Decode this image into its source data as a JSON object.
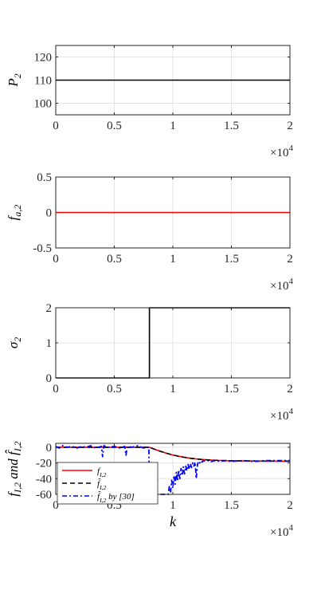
{
  "chart_data": [
    {
      "type": "line",
      "ylabel": "P_2",
      "xlim": [
        0,
        20000
      ],
      "ylim": [
        95,
        125
      ],
      "xticks": [
        "0",
        "0.5",
        "1",
        "1.5",
        "2"
      ],
      "yticks": [
        "100",
        "110",
        "120"
      ],
      "ytick_values": [
        100,
        110,
        120
      ],
      "x_multiplier": "×10^4",
      "grid": true,
      "series": [
        {
          "color": "#000000",
          "style": "solid",
          "x": [
            0,
            20000
          ],
          "y": [
            110,
            110
          ]
        }
      ]
    },
    {
      "type": "line",
      "ylabel": "f_{a,2}",
      "xlim": [
        0,
        20000
      ],
      "ylim": [
        -0.5,
        0.5
      ],
      "xticks": [
        "0",
        "0.5",
        "1",
        "1.5",
        "2"
      ],
      "yticks": [
        "-0.5",
        "0",
        "0.5"
      ],
      "ytick_values": [
        -0.5,
        0,
        0.5
      ],
      "x_multiplier": "×10^4",
      "grid": true,
      "series": [
        {
          "color": "#ff0000",
          "style": "solid",
          "x": [
            0,
            20000
          ],
          "y": [
            0,
            0
          ]
        }
      ]
    },
    {
      "type": "line",
      "ylabel": "σ_2",
      "xlim": [
        0,
        20000
      ],
      "ylim": [
        0,
        2
      ],
      "xticks": [
        "0",
        "0.5",
        "1",
        "1.5",
        "2"
      ],
      "yticks": [
        "0",
        "1",
        "2"
      ],
      "ytick_values": [
        0,
        1,
        2
      ],
      "x_multiplier": "×10^4",
      "grid": true,
      "series": [
        {
          "color": "#000000",
          "style": "solid",
          "x": [
            0,
            8000,
            8000,
            20000
          ],
          "y": [
            0,
            0,
            2,
            2
          ]
        }
      ]
    },
    {
      "type": "line",
      "ylabel": "f_{I,2} and f̂_{I,2}",
      "xlabel": "k",
      "xlim": [
        0,
        20000
      ],
      "ylim": [
        -60,
        5
      ],
      "xticks": [
        "0",
        "0.5",
        "1",
        "1.5",
        "2"
      ],
      "yticks": [
        "0",
        "-20",
        "-40",
        "-60"
      ],
      "ytick_values": [
        0,
        -20,
        -40,
        -60
      ],
      "x_multiplier": "×10^4",
      "grid": true,
      "legend": "bottom-left",
      "series": [
        {
          "name": "f_{I,2}",
          "color": "#ff0000",
          "style": "solid",
          "x": [
            0,
            8000,
            8500,
            9000,
            9500,
            10000,
            10500,
            11000,
            11500,
            12000,
            12500,
            13000,
            14000,
            15000,
            16000,
            18000,
            20000
          ],
          "y": [
            0,
            0,
            -2.8,
            -5.5,
            -7.8,
            -9.8,
            -11.5,
            -12.9,
            -14,
            -14.9,
            -15.6,
            -16.1,
            -16.8,
            -17.2,
            -17.4,
            -17.6,
            -17.7
          ]
        },
        {
          "name": "f̂_{I,2}",
          "color": "#000000",
          "style": "dashed",
          "x": [
            0,
            8000,
            8500,
            9000,
            9500,
            10000,
            10500,
            11000,
            11500,
            12000,
            12500,
            13000,
            14000,
            15000,
            16000,
            18000,
            20000
          ],
          "y": [
            0,
            0,
            -2.8,
            -5.5,
            -7.8,
            -9.8,
            -11.5,
            -12.9,
            -14,
            -14.9,
            -15.6,
            -16.1,
            -16.8,
            -17.2,
            -17.4,
            -17.6,
            -17.7
          ]
        },
        {
          "name": "f̂_{I,2} by [30]",
          "color": "#0000ff",
          "style": "dashdot",
          "x": [
            0,
            300,
            600,
            1000,
            1400,
            1800,
            2200,
            2600,
            3000,
            3400,
            3900,
            4000,
            4100,
            4500,
            5000,
            5500,
            5900,
            6000,
            6100,
            6500,
            7000,
            7500,
            7950,
            8000,
            8100,
            9400,
            9600,
            9700,
            9800,
            9900,
            10000,
            10100,
            10200,
            10300,
            10400,
            10500,
            10600,
            10700,
            10800,
            10900,
            11000,
            11100,
            11200,
            11300,
            11400,
            11500,
            11600,
            11700,
            11800,
            11900,
            12000,
            12100,
            12200,
            12300,
            12400,
            12500,
            12600,
            12800,
            13000,
            13200,
            13500,
            14000,
            14500,
            15000,
            16000,
            17000,
            18000,
            20000
          ],
          "y": [
            1,
            -1,
            2,
            0,
            1,
            -1,
            1,
            0,
            2,
            -1,
            1,
            -12,
            2,
            0,
            1,
            -1,
            1,
            -10,
            1,
            0,
            2,
            -1,
            0,
            -62,
            -62,
            -62,
            -60,
            -50,
            -58,
            -42,
            -52,
            -36,
            -47,
            -32,
            -43,
            -29,
            -40,
            -27,
            -36,
            -25,
            -34,
            -24,
            -30,
            -22,
            -28,
            -21,
            -26,
            -20,
            -24,
            -19,
            -40,
            -22,
            -18,
            -20,
            -17,
            -19,
            -17,
            -18,
            -17,
            -19,
            -17,
            -18,
            -17,
            -18,
            -17,
            -18,
            -17,
            -17
          ]
        }
      ]
    }
  ]
}
